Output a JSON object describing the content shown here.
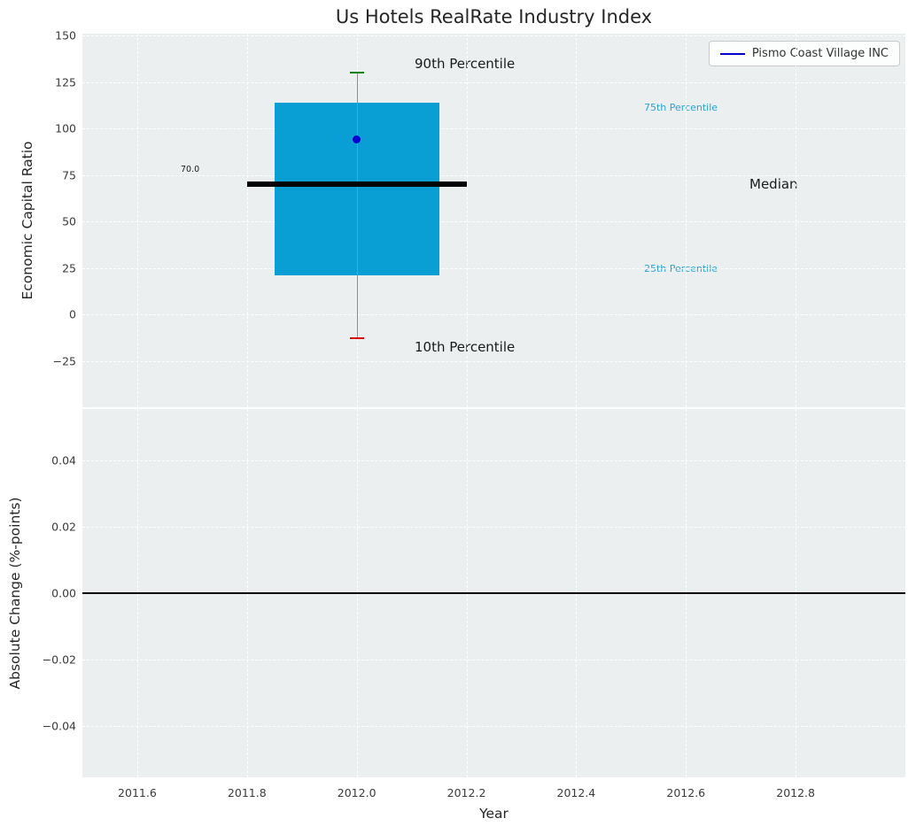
{
  "chart_data": [
    {
      "type": "boxplot",
      "title": "Us Hotels RealRate Industry Index",
      "ylabel": "Economic Capital Ratio",
      "xlim": [
        2011.5,
        2013.0
      ],
      "ylim": [
        -50,
        151
      ],
      "yticks": [
        150,
        125,
        100,
        75,
        50,
        25,
        0,
        -25
      ],
      "yticklabels": [
        "150",
        "125",
        "100",
        "75",
        "50",
        "25",
        "0",
        "−25"
      ],
      "xticks": [
        2011.6,
        2011.8,
        2012.0,
        2012.2,
        2012.4,
        2012.6,
        2012.8
      ],
      "xticklabels": [
        "2011.6",
        "2011.8",
        "2012.0",
        "2012.2",
        "2012.4",
        "2012.6",
        "2012.8"
      ],
      "grid": true,
      "legend": {
        "label": "Pismo Coast Village INC",
        "position": "upper right",
        "line_color": "#0000cc"
      },
      "box": {
        "x": 2012.0,
        "p10": -13,
        "p25": 21,
        "median": 70.0,
        "p75": 114,
        "p90": 130,
        "box_width": 0.3,
        "median_width": 0.4,
        "box_color": "#0a9fd4",
        "median_color": "#000000",
        "p90_cap_color": "#008000",
        "p10_cap_color": "#dd0000",
        "whisker_color": "#8f8f8f"
      },
      "company_point": {
        "name": "Pismo Coast Village INC",
        "x": 2012.0,
        "y": 94,
        "color": "#0000cd"
      },
      "labels": {
        "p90": "90th Percentile",
        "p10": "10th Percentile",
        "p75": "75th Percentile",
        "p25": "25th Percentile",
        "median": "Median",
        "median_value": "70.0"
      },
      "percentile_label_color": "#2aa3cf"
    },
    {
      "type": "line",
      "ylabel": "Absolute Change (%-points)",
      "xlabel": "Year",
      "xlim": [
        2011.5,
        2013.0
      ],
      "ylim": [
        -0.0555,
        0.0555
      ],
      "yticks": [
        0.04,
        0.02,
        0.0,
        -0.02,
        -0.04
      ],
      "yticklabels": [
        "0.04",
        "0.02",
        "0.00",
        "−0.02",
        "−0.04"
      ],
      "xticks": [
        2011.6,
        2011.8,
        2012.0,
        2012.2,
        2012.4,
        2012.6,
        2012.8
      ],
      "xticklabels": [
        "2011.6",
        "2011.8",
        "2012.0",
        "2012.2",
        "2012.4",
        "2012.6",
        "2012.8"
      ],
      "grid": true,
      "zero_line": 0.0,
      "series": []
    }
  ]
}
